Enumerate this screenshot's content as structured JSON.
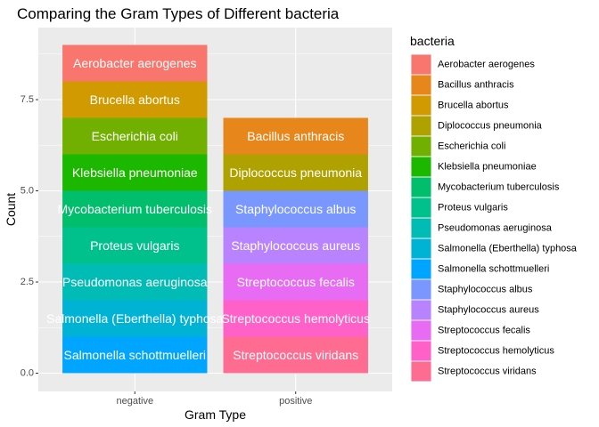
{
  "chart_data": {
    "type": "bar",
    "stacked": true,
    "title": "Comparing the Gram Types of Different bacteria",
    "xlabel": "Gram Type",
    "ylabel": "Count",
    "categories": [
      "negative",
      "positive"
    ],
    "ylim": [
      0,
      9
    ],
    "yticks": [
      0.0,
      2.5,
      5.0,
      7.5
    ],
    "ytick_labels": [
      "0.0",
      "2.5",
      "5.0",
      "7.5"
    ],
    "grid": true,
    "legend": {
      "title": "bacteria",
      "position": "right",
      "entries": [
        {
          "name": "Aerobacter aerogenes",
          "color": "#F8766D"
        },
        {
          "name": "Bacillus anthracis",
          "color": "#E7861B"
        },
        {
          "name": "Brucella abortus",
          "color": "#D09A00"
        },
        {
          "name": "Diplococcus pneumonia",
          "color": "#AFA100"
        },
        {
          "name": "Escherichia coli",
          "color": "#72B000"
        },
        {
          "name": "Klebsiella pneumoniae",
          "color": "#1CB800"
        },
        {
          "name": "Mycobacterium tuberculosis",
          "color": "#00BE6C"
        },
        {
          "name": "Proteus vulgaris",
          "color": "#00C08B"
        },
        {
          "name": "Pseudomonas aeruginosa",
          "color": "#00BCB5"
        },
        {
          "name": "Salmonella (Eberthella) typhosa",
          "color": "#00B2D4"
        },
        {
          "name": "Salmonella schottmuelleri",
          "color": "#00A5FF"
        },
        {
          "name": "Staphylococcus albus",
          "color": "#7997FF"
        },
        {
          "name": "Staphylococcus aureus",
          "color": "#B983FF"
        },
        {
          "name": "Streptococcus fecalis",
          "color": "#E76BF3"
        },
        {
          "name": "Streptococcus hemolyticus",
          "color": "#FF61C9"
        },
        {
          "name": "Streptococcus viridans",
          "color": "#FF6C91"
        }
      ]
    },
    "stacks": [
      {
        "category": "negative",
        "segments": [
          {
            "name": "Aerobacter aerogenes",
            "value": 1,
            "label": "Aerobacter aerogenes"
          },
          {
            "name": "Brucella abortus",
            "value": 1,
            "label": "Brucella abortus"
          },
          {
            "name": "Escherichia coli",
            "value": 1,
            "label": "Escherichia coli"
          },
          {
            "name": "Klebsiella pneumoniae",
            "value": 1,
            "label": "Klebsiella pneumoniae"
          },
          {
            "name": "Mycobacterium tuberculosis",
            "value": 1,
            "label": "Mycobacterium tuberculosis"
          },
          {
            "name": "Proteus vulgaris",
            "value": 1,
            "label": "Proteus vulgaris"
          },
          {
            "name": "Pseudomonas aeruginosa",
            "value": 1,
            "label": "Pseudomonas aeruginosa"
          },
          {
            "name": "Salmonella (Eberthella) typhosa",
            "value": 1,
            "label": "Salmonella (Eberthella) typhosa"
          },
          {
            "name": "Salmonella schottmuelleri",
            "value": 1,
            "label": "Salmonella schottmuelleri"
          }
        ]
      },
      {
        "category": "positive",
        "segments": [
          {
            "name": "Bacillus anthracis",
            "value": 1,
            "label": "Bacillus anthracis"
          },
          {
            "name": "Diplococcus pneumonia",
            "value": 1,
            "label": "Diplococcus pneumonia"
          },
          {
            "name": "Staphylococcus albus",
            "value": 1,
            "label": "Staphylococcus albus"
          },
          {
            "name": "Staphylococcus aureus",
            "value": 1,
            "label": "Staphylococcus aureus"
          },
          {
            "name": "Streptococcus fecalis",
            "value": 1,
            "label": "Streptococcus fecalis"
          },
          {
            "name": "Streptococcus hemolyticus",
            "value": 1,
            "label": "Streptococcus hemolyticus"
          },
          {
            "name": "Streptococcus viridans",
            "value": 1,
            "label": "Streptococcus viridans"
          }
        ]
      }
    ]
  }
}
